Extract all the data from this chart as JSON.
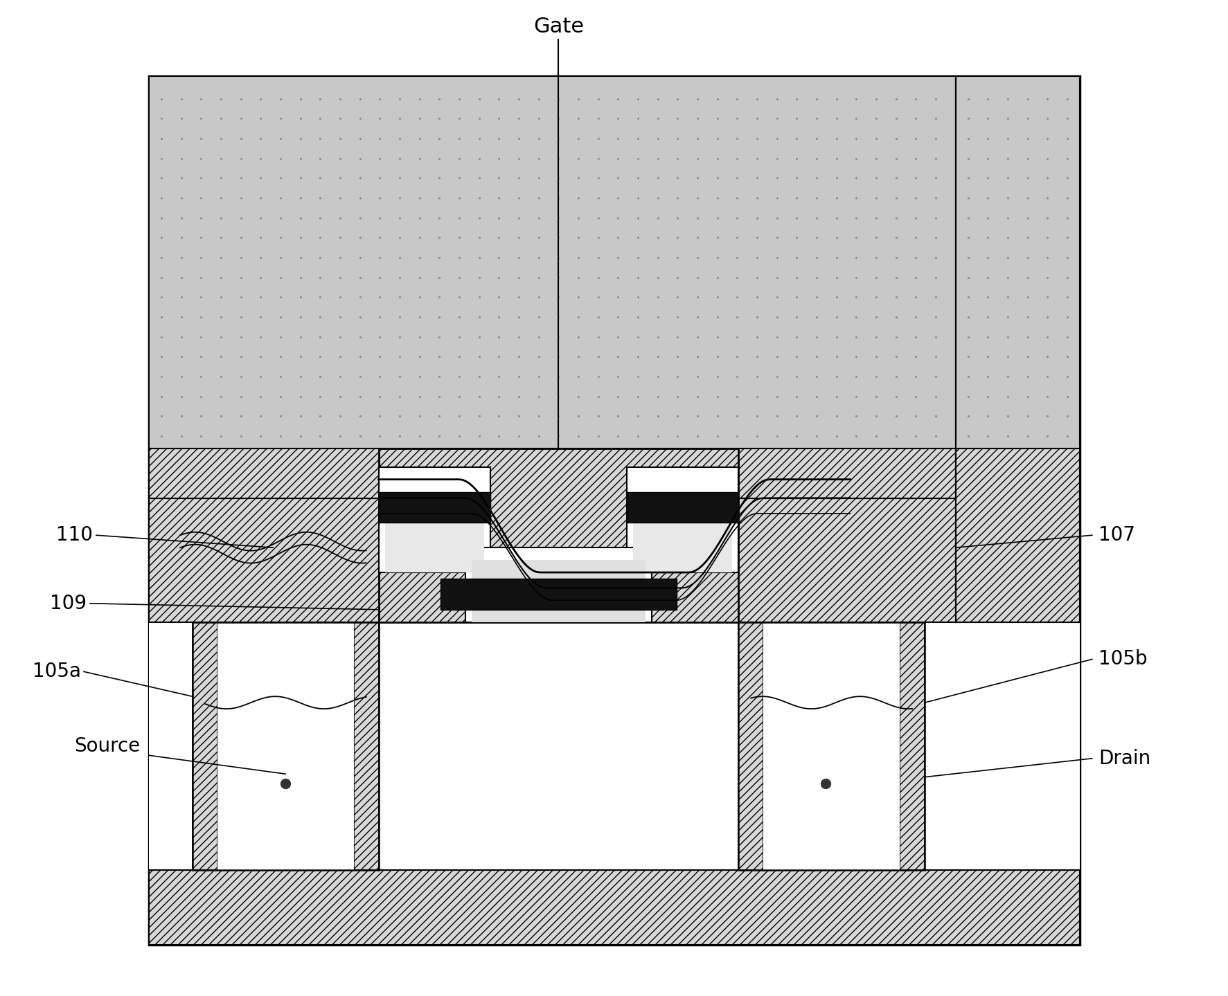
{
  "figsize": [
    17.74,
    14.39
  ],
  "dpi": 100,
  "bg_color": "#ffffff",
  "labels": {
    "gate": "Gate",
    "source": "Source",
    "drain": "Drain",
    "n110": "110",
    "n109": "109",
    "n105a": "105a",
    "n105b": "105b",
    "n107": "107"
  },
  "colors": {
    "white": "#ffffff",
    "black": "#000000",
    "stipple_gray": "#c8c8c8",
    "hatch_gray": "#d8d8d8",
    "dark": "#111111",
    "dot_color": "#888888",
    "medium_gray": "#b8b8b8"
  },
  "fontsize_label": 22,
  "fontsize_number": 20
}
